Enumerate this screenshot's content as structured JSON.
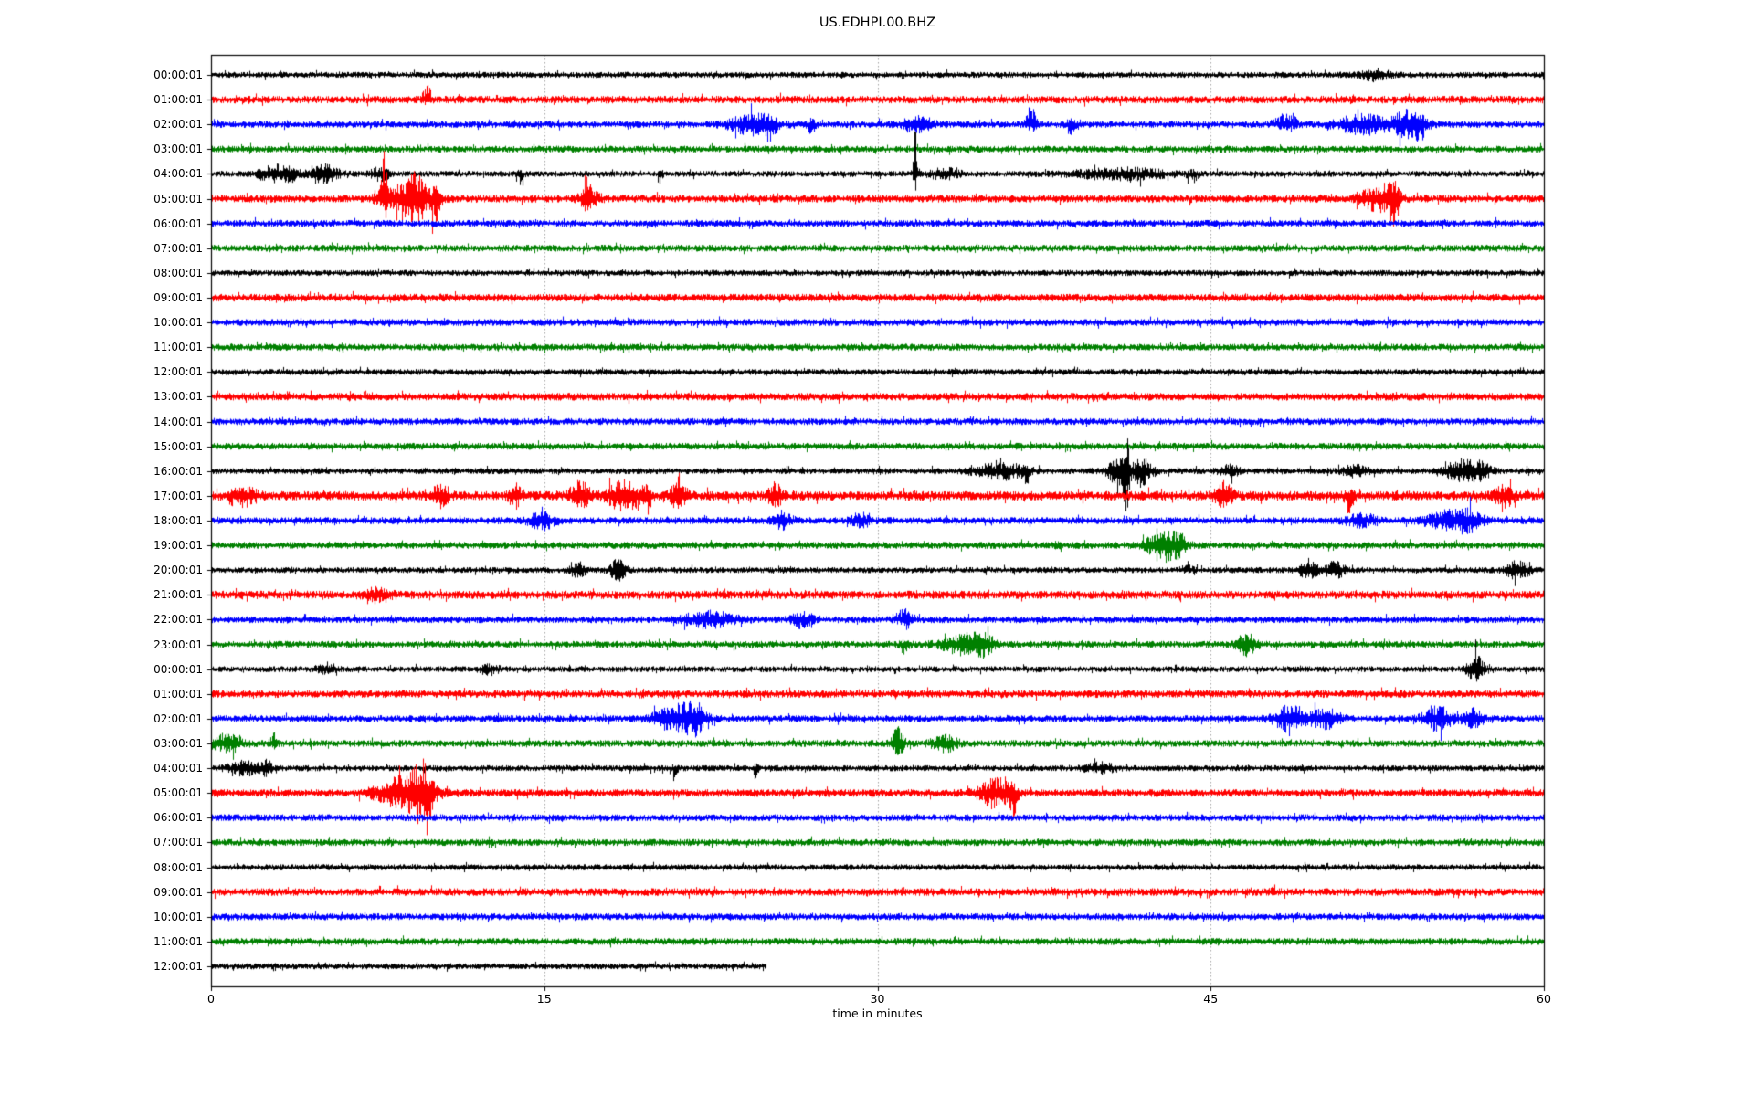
{
  "chart_data": {
    "type": "line",
    "subtype": "seismogram-dayplot",
    "title": "US.EDHPI.00.BHZ",
    "xlabel": "time in minutes",
    "x_axis": {
      "min": 0,
      "max": 60,
      "tick_values": [
        0,
        15,
        30,
        45,
        60
      ],
      "tick_labels": [
        "0",
        "15",
        "30",
        "45",
        "60"
      ],
      "grid_values": [
        15,
        30,
        45
      ],
      "grid_on": true
    },
    "trace_color_cycle": [
      "#000000",
      "#ff0000",
      "#0000ff",
      "#008000"
    ],
    "grid_color": "#a0a0a0",
    "axis_color": "#000000",
    "rows": [
      {
        "label": "00:00:01",
        "color": "#000000",
        "events": [
          {
            "m": 52.4,
            "a": 1.5,
            "w": 0.5,
            "d": 0
          }
        ]
      },
      {
        "label": "01:00:01",
        "color": "#ff0000",
        "events": [
          {
            "m": 9.7,
            "a": 4,
            "w": 0.12,
            "d": 1
          }
        ]
      },
      {
        "label": "02:00:01",
        "color": "#0000ff",
        "events": [
          {
            "m": 24.3,
            "a": 2.5,
            "w": 0.7,
            "d": 0
          },
          {
            "m": 25.1,
            "a": 3,
            "w": 0.25,
            "d": -1
          },
          {
            "m": 27.0,
            "a": 3,
            "w": 0.12,
            "d": -1
          },
          {
            "m": 31.8,
            "a": 1.8,
            "w": 0.5,
            "d": 0
          },
          {
            "m": 36.9,
            "a": 5,
            "w": 0.15,
            "d": 1
          },
          {
            "m": 38.7,
            "a": 4,
            "w": 0.12,
            "d": -1
          },
          {
            "m": 48.4,
            "a": 2.5,
            "w": 0.35,
            "d": 1
          },
          {
            "m": 51.8,
            "a": 2.5,
            "w": 0.8,
            "d": 0
          },
          {
            "m": 53.9,
            "a": 3.5,
            "w": 0.5,
            "d": 0
          },
          {
            "m": 54.4,
            "a": 3,
            "w": 0.15,
            "d": -1
          }
        ]
      },
      {
        "label": "03:00:01",
        "color": "#008000",
        "events": []
      },
      {
        "label": "04:00:01",
        "color": "#000000",
        "events": [
          {
            "m": 2.9,
            "a": 2.5,
            "w": 0.5,
            "d": 0
          },
          {
            "m": 3.6,
            "a": 3.5,
            "w": 0.12,
            "d": -1
          },
          {
            "m": 5.0,
            "a": 2.8,
            "w": 0.5,
            "d": 0
          },
          {
            "m": 7.6,
            "a": 1.8,
            "w": 0.3,
            "d": 0
          },
          {
            "m": 13.9,
            "a": 3,
            "w": 0.1,
            "d": -1
          },
          {
            "m": 20.2,
            "a": 3.5,
            "w": 0.08,
            "d": -1
          },
          {
            "m": 31.7,
            "a": 16,
            "w": 0.07,
            "d": 1
          },
          {
            "m": 33.0,
            "a": 1.5,
            "w": 0.5,
            "d": 0
          },
          {
            "m": 41.0,
            "a": 1.6,
            "w": 1.5,
            "d": 0
          },
          {
            "m": 44.2,
            "a": 2.2,
            "w": 0.15,
            "d": -1
          }
        ]
      },
      {
        "label": "05:00:01",
        "color": "#ff0000",
        "events": [
          {
            "m": 7.8,
            "a": 11,
            "w": 0.1,
            "d": 1
          },
          {
            "m": 8.7,
            "a": 3.5,
            "w": 0.7,
            "d": 0
          },
          {
            "m": 9.3,
            "a": 4,
            "w": 0.3,
            "d": 0
          },
          {
            "m": 10.1,
            "a": 7,
            "w": 0.12,
            "d": -1
          },
          {
            "m": 16.9,
            "a": 5,
            "w": 0.12,
            "d": 1
          },
          {
            "m": 17.0,
            "a": 2,
            "w": 0.3,
            "d": 0
          },
          {
            "m": 52.4,
            "a": 2.5,
            "w": 0.5,
            "d": 0
          },
          {
            "m": 53.3,
            "a": 4.5,
            "w": 0.15,
            "d": -1
          },
          {
            "m": 53.1,
            "a": 2.5,
            "w": 0.3,
            "d": 0
          }
        ]
      },
      {
        "label": "06:00:01",
        "color": "#0000ff",
        "events": []
      },
      {
        "label": "07:00:01",
        "color": "#008000",
        "events": []
      },
      {
        "label": "08:00:01",
        "color": "#000000",
        "events": []
      },
      {
        "label": "09:00:01",
        "color": "#ff0000",
        "events": []
      },
      {
        "label": "10:00:01",
        "color": "#0000ff",
        "events": []
      },
      {
        "label": "11:00:01",
        "color": "#008000",
        "events": []
      },
      {
        "label": "12:00:01",
        "color": "#000000",
        "events": []
      },
      {
        "label": "13:00:01",
        "color": "#ff0000",
        "events": []
      },
      {
        "label": "14:00:01",
        "color": "#0000ff",
        "events": []
      },
      {
        "label": "15:00:01",
        "color": "#008000",
        "events": []
      },
      {
        "label": "16:00:01",
        "color": "#000000",
        "events": [
          {
            "m": 35.5,
            "a": 2.5,
            "w": 0.8,
            "d": 0
          },
          {
            "m": 36.7,
            "a": 5,
            "w": 0.12,
            "d": -1
          },
          {
            "m": 40.8,
            "a": 5,
            "w": 0.3,
            "d": 0
          },
          {
            "m": 41.2,
            "a": 12,
            "w": 0.1,
            "d": 0
          },
          {
            "m": 41.9,
            "a": 4,
            "w": 0.35,
            "d": 0
          },
          {
            "m": 45.8,
            "a": 1.8,
            "w": 0.3,
            "d": 0
          },
          {
            "m": 51.5,
            "a": 1.6,
            "w": 0.4,
            "d": 0
          },
          {
            "m": 56.3,
            "a": 3.5,
            "w": 0.5,
            "d": 0
          },
          {
            "m": 57.2,
            "a": 2.5,
            "w": 0.3,
            "d": 0
          }
        ]
      },
      {
        "label": "17:00:01",
        "color": "#ff0000",
        "noise": 1.25,
        "events": [
          {
            "m": 1.5,
            "a": 1.6,
            "w": 0.4,
            "d": 0
          },
          {
            "m": 10.3,
            "a": 2,
            "w": 0.25,
            "d": 0
          },
          {
            "m": 13.7,
            "a": 2,
            "w": 0.2,
            "d": 0
          },
          {
            "m": 16.6,
            "a": 2.5,
            "w": 0.3,
            "d": 0
          },
          {
            "m": 18.6,
            "a": 3,
            "w": 0.5,
            "d": 0
          },
          {
            "m": 19.6,
            "a": 3.5,
            "w": 0.15,
            "d": -1
          },
          {
            "m": 21.0,
            "a": 2,
            "w": 0.3,
            "d": 0
          },
          {
            "m": 25.4,
            "a": 2.5,
            "w": 0.2,
            "d": 0
          },
          {
            "m": 45.6,
            "a": 2.5,
            "w": 0.25,
            "d": 0
          },
          {
            "m": 51.2,
            "a": 3,
            "w": 0.15,
            "d": -1
          },
          {
            "m": 58.2,
            "a": 1.8,
            "w": 0.3,
            "d": 0
          }
        ]
      },
      {
        "label": "18:00:01",
        "color": "#0000ff",
        "events": [
          {
            "m": 14.9,
            "a": 2.2,
            "w": 0.4,
            "d": 0
          },
          {
            "m": 25.7,
            "a": 2.2,
            "w": 0.3,
            "d": 0
          },
          {
            "m": 29.2,
            "a": 1.8,
            "w": 0.3,
            "d": 0
          },
          {
            "m": 51.8,
            "a": 1.6,
            "w": 0.5,
            "d": 0
          },
          {
            "m": 55.6,
            "a": 2.2,
            "w": 0.7,
            "d": 0
          },
          {
            "m": 56.6,
            "a": 2.2,
            "w": 0.5,
            "d": 0
          }
        ]
      },
      {
        "label": "19:00:01",
        "color": "#008000",
        "events": [
          {
            "m": 38.1,
            "a": 2,
            "w": 0.12,
            "d": -1
          },
          {
            "m": 42.8,
            "a": 4.5,
            "w": 0.45,
            "d": 0
          },
          {
            "m": 43.6,
            "a": 2.5,
            "w": 0.25,
            "d": 0
          }
        ]
      },
      {
        "label": "20:00:01",
        "color": "#000000",
        "events": [
          {
            "m": 16.5,
            "a": 2.2,
            "w": 0.25,
            "d": 0
          },
          {
            "m": 18.3,
            "a": 3,
            "w": 0.25,
            "d": 0
          },
          {
            "m": 43.9,
            "a": 2.2,
            "w": 0.2,
            "d": 1
          },
          {
            "m": 49.4,
            "a": 2.5,
            "w": 0.3,
            "d": 0
          },
          {
            "m": 50.6,
            "a": 2.5,
            "w": 0.3,
            "d": 0
          },
          {
            "m": 58.8,
            "a": 2.5,
            "w": 0.4,
            "d": 0
          }
        ]
      },
      {
        "label": "21:00:01",
        "color": "#ff0000",
        "noise": 1.1,
        "events": [
          {
            "m": 7.5,
            "a": 1.3,
            "w": 0.4,
            "d": 0
          }
        ]
      },
      {
        "label": "22:00:01",
        "color": "#0000ff",
        "events": [
          {
            "m": 22.4,
            "a": 2,
            "w": 0.8,
            "d": 0
          },
          {
            "m": 26.6,
            "a": 2,
            "w": 0.3,
            "d": 0
          },
          {
            "m": 31.2,
            "a": 2.8,
            "w": 0.25,
            "d": 1
          }
        ]
      },
      {
        "label": "23:00:01",
        "color": "#008000",
        "events": [
          {
            "m": 31.2,
            "a": 2.2,
            "w": 0.15,
            "d": -1
          },
          {
            "m": 33.9,
            "a": 2.5,
            "w": 0.7,
            "d": 0
          },
          {
            "m": 34.8,
            "a": 2,
            "w": 0.3,
            "d": 0
          },
          {
            "m": 46.6,
            "a": 2.8,
            "w": 0.3,
            "d": 0
          }
        ]
      },
      {
        "label": "00:00:01",
        "color": "#000000",
        "events": [
          {
            "m": 5.2,
            "a": 1.6,
            "w": 0.3,
            "d": 0
          },
          {
            "m": 12.5,
            "a": 1.4,
            "w": 0.3,
            "d": 0
          },
          {
            "m": 56.9,
            "a": 4.5,
            "w": 0.25,
            "d": 0
          }
        ]
      },
      {
        "label": "01:00:01",
        "color": "#ff0000",
        "events": []
      },
      {
        "label": "02:00:01",
        "color": "#0000ff",
        "events": [
          {
            "m": 21.0,
            "a": 3.5,
            "w": 0.7,
            "d": 0
          },
          {
            "m": 21.8,
            "a": 3,
            "w": 0.3,
            "d": 0
          },
          {
            "m": 48.6,
            "a": 3.5,
            "w": 0.5,
            "d": 0
          },
          {
            "m": 50.2,
            "a": 3,
            "w": 0.4,
            "d": 0
          },
          {
            "m": 55.2,
            "a": 3.2,
            "w": 0.45,
            "d": 0
          },
          {
            "m": 56.8,
            "a": 2.5,
            "w": 0.3,
            "d": 0
          }
        ]
      },
      {
        "label": "03:00:01",
        "color": "#008000",
        "events": [
          {
            "m": 0.7,
            "a": 2,
            "w": 0.5,
            "d": 0
          },
          {
            "m": 2.8,
            "a": 2.8,
            "w": 0.1,
            "d": 1
          },
          {
            "m": 30.9,
            "a": 4,
            "w": 0.2,
            "d": 0
          },
          {
            "m": 33.0,
            "a": 2,
            "w": 0.4,
            "d": 0
          }
        ]
      },
      {
        "label": "04:00:01",
        "color": "#000000",
        "events": [
          {
            "m": 1.5,
            "a": 2,
            "w": 0.5,
            "d": 0
          },
          {
            "m": 2.5,
            "a": 2.2,
            "w": 0.15,
            "d": 0
          },
          {
            "m": 20.9,
            "a": 2.5,
            "w": 0.1,
            "d": -1
          },
          {
            "m": 24.5,
            "a": 3,
            "w": 0.08,
            "d": -1
          },
          {
            "m": 40.0,
            "a": 1.4,
            "w": 0.5,
            "d": 0
          }
        ]
      },
      {
        "label": "05:00:01",
        "color": "#ff0000",
        "events": [
          {
            "m": 8.8,
            "a": 4,
            "w": 0.9,
            "d": 0
          },
          {
            "m": 9.4,
            "a": 4.5,
            "w": 0.3,
            "d": 0
          },
          {
            "m": 9.7,
            "a": 7,
            "w": 0.15,
            "d": -1
          },
          {
            "m": 35.3,
            "a": 3.5,
            "w": 0.5,
            "d": 0
          },
          {
            "m": 36.1,
            "a": 5,
            "w": 0.12,
            "d": -1
          }
        ]
      },
      {
        "label": "06:00:01",
        "color": "#0000ff",
        "events": []
      },
      {
        "label": "07:00:01",
        "color": "#008000",
        "events": []
      },
      {
        "label": "08:00:01",
        "color": "#000000",
        "events": []
      },
      {
        "label": "09:00:01",
        "color": "#ff0000",
        "events": [
          {
            "m": 47.8,
            "a": 2.2,
            "w": 0.07,
            "d": 1
          }
        ]
      },
      {
        "label": "10:00:01",
        "color": "#0000ff",
        "events": []
      },
      {
        "label": "11:00:01",
        "color": "#008000",
        "events": []
      },
      {
        "label": "12:00:01",
        "color": "#000000",
        "end_min": 25,
        "events": []
      }
    ]
  }
}
